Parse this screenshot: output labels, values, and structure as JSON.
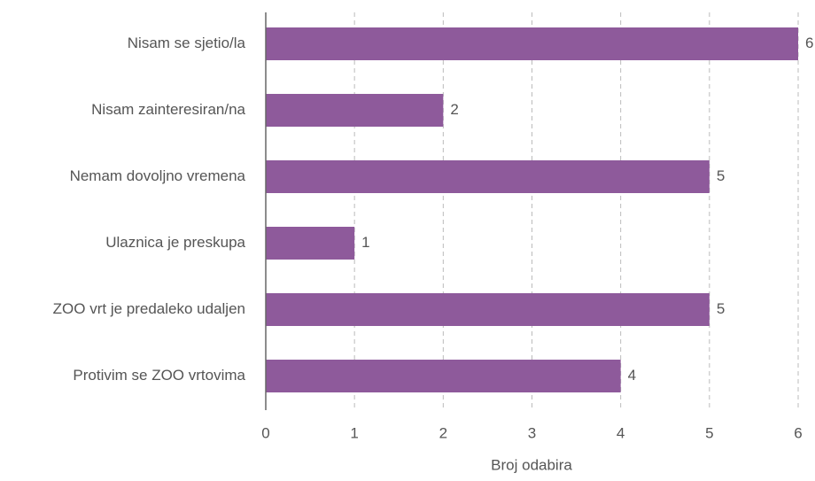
{
  "chart_data": {
    "type": "bar",
    "orientation": "horizontal",
    "x_label": "Broj odabira",
    "categories": [
      "Nisam se sjetio/la",
      "Nisam zainteresiran/na",
      "Nemam dovoljno vremena",
      "Ulaznica je preskupa",
      "ZOO vrt je predaleko udaljen",
      "Protivim se ZOO vrtovima"
    ],
    "values": [
      6,
      2,
      5,
      1,
      5,
      4
    ],
    "color": "#8e5a9b",
    "xlim": [
      0,
      6
    ],
    "xticks": [
      0,
      1,
      2,
      3,
      4,
      5,
      6
    ],
    "grid": true
  }
}
